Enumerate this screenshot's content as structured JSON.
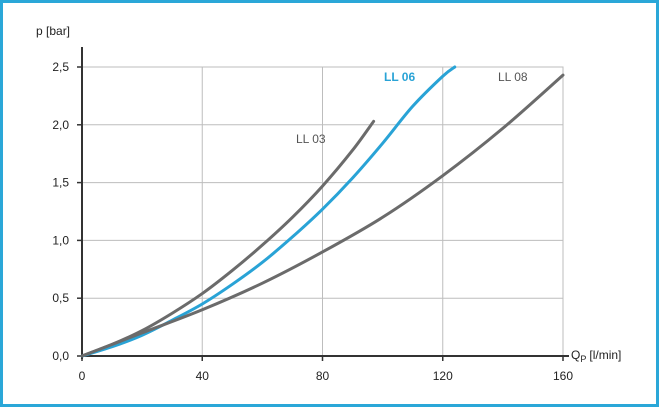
{
  "chart_data": {
    "type": "line",
    "ylabel": "p [bar]",
    "xlabel_main": "Q",
    "xlabel_sub": "P",
    "xlabel_unit": "[l/min]",
    "xlim": [
      0,
      160
    ],
    "ylim": [
      0,
      2.5
    ],
    "x_ticks": [
      0,
      40,
      80,
      120,
      160
    ],
    "y_ticks": [
      0,
      0.5,
      1.0,
      1.5,
      2.0,
      2.5
    ],
    "x_tick_labels": [
      "0",
      "40",
      "80",
      "120",
      "160"
    ],
    "y_tick_labels": [
      "0,0",
      "0,5",
      "1,0",
      "1,5",
      "2,0",
      "2,5"
    ],
    "grid": true,
    "border_color": "#2aa7d8",
    "series": [
      {
        "name": "LL 03",
        "color": "#6b6b6b",
        "label_color": "#555555",
        "points": [
          [
            0,
            0
          ],
          [
            10,
            0.1
          ],
          [
            20,
            0.22
          ],
          [
            30,
            0.37
          ],
          [
            40,
            0.54
          ],
          [
            50,
            0.74
          ],
          [
            60,
            0.96
          ],
          [
            70,
            1.2
          ],
          [
            80,
            1.47
          ],
          [
            90,
            1.78
          ],
          [
            97,
            2.03
          ]
        ]
      },
      {
        "name": "LL 06",
        "color": "#29a3d6",
        "label_color": "#29a3d6",
        "points": [
          [
            0,
            0
          ],
          [
            10,
            0.08
          ],
          [
            20,
            0.18
          ],
          [
            30,
            0.31
          ],
          [
            40,
            0.45
          ],
          [
            50,
            0.62
          ],
          [
            60,
            0.81
          ],
          [
            70,
            1.03
          ],
          [
            80,
            1.27
          ],
          [
            90,
            1.54
          ],
          [
            100,
            1.84
          ],
          [
            110,
            2.16
          ],
          [
            120,
            2.42
          ],
          [
            124,
            2.5
          ]
        ]
      },
      {
        "name": "LL 08",
        "color": "#6b6b6b",
        "label_color": "#555555",
        "points": [
          [
            0,
            0
          ],
          [
            20,
            0.2
          ],
          [
            40,
            0.4
          ],
          [
            60,
            0.63
          ],
          [
            80,
            0.9
          ],
          [
            100,
            1.2
          ],
          [
            120,
            1.56
          ],
          [
            140,
            1.97
          ],
          [
            160,
            2.43
          ]
        ]
      }
    ]
  }
}
